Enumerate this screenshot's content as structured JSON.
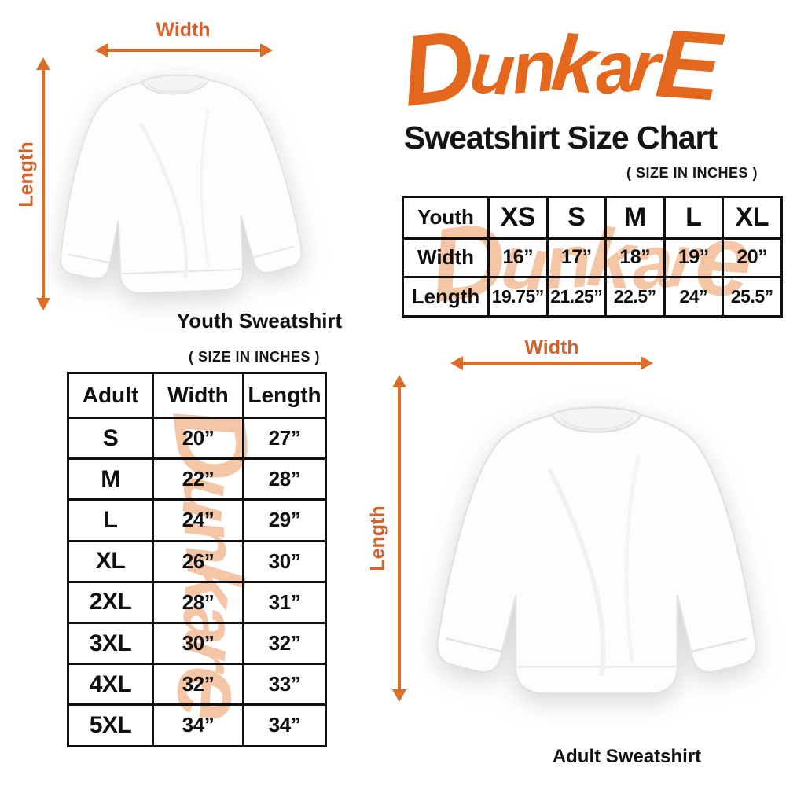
{
  "brand": {
    "logo_text": "DunkarE",
    "logo_color": "#e4671e"
  },
  "header": {
    "title": "Sweatshirt Size Chart",
    "size_note": "( SIZE IN INCHES )"
  },
  "youth_diagram": {
    "width_label": "Width",
    "length_label": "Length",
    "caption": "Youth Sweatshirt"
  },
  "adult_diagram": {
    "width_label": "Width",
    "length_label": "Length",
    "caption": "Adult Sweatshirt"
  },
  "youth_table": {
    "rows": [
      [
        "Youth",
        "XS",
        "S",
        "M",
        "L",
        "XL"
      ],
      [
        "Width",
        "16”",
        "17”",
        "18”",
        "19”",
        "20”"
      ],
      [
        "Length",
        "19.75”",
        "21.25”",
        "22.5”",
        "24”",
        "25.5”"
      ]
    ]
  },
  "adult_table": {
    "size_note": "( SIZE IN INCHES )",
    "rows": [
      [
        "Adult",
        "Width",
        "Length"
      ],
      [
        "S",
        "20”",
        "27”"
      ],
      [
        "M",
        "22”",
        "28”"
      ],
      [
        "L",
        "24”",
        "29”"
      ],
      [
        "XL",
        "26”",
        "30”"
      ],
      [
        "2XL",
        "28”",
        "31”"
      ],
      [
        "3XL",
        "30”",
        "32”"
      ],
      [
        "4XL",
        "32”",
        "33”"
      ],
      [
        "5XL",
        "34”",
        "34”"
      ]
    ]
  },
  "watermark": {
    "text": "Dunkare",
    "color": "#f5c6a6"
  },
  "colors": {
    "accent_orange": "#e4671e",
    "arrow_orange": "#dd6c29",
    "table_border": "#0f0f0f"
  },
  "chart_data": [
    {
      "type": "table",
      "title": "Youth Sweatshirt Size Chart (inches)",
      "columns": [
        "Youth",
        "XS",
        "S",
        "M",
        "L",
        "XL"
      ],
      "rows": [
        [
          "Width",
          16,
          17,
          18,
          19,
          20
        ],
        [
          "Length",
          19.75,
          21.25,
          22.5,
          24,
          25.5
        ]
      ]
    },
    {
      "type": "table",
      "title": "Adult Sweatshirt Size Chart (inches)",
      "columns": [
        "Adult",
        "Width",
        "Length"
      ],
      "rows": [
        [
          "S",
          20,
          27
        ],
        [
          "M",
          22,
          28
        ],
        [
          "L",
          24,
          29
        ],
        [
          "XL",
          26,
          30
        ],
        [
          "2XL",
          28,
          31
        ],
        [
          "3XL",
          30,
          32
        ],
        [
          "4XL",
          32,
          33
        ],
        [
          "5XL",
          34,
          34
        ]
      ]
    }
  ]
}
